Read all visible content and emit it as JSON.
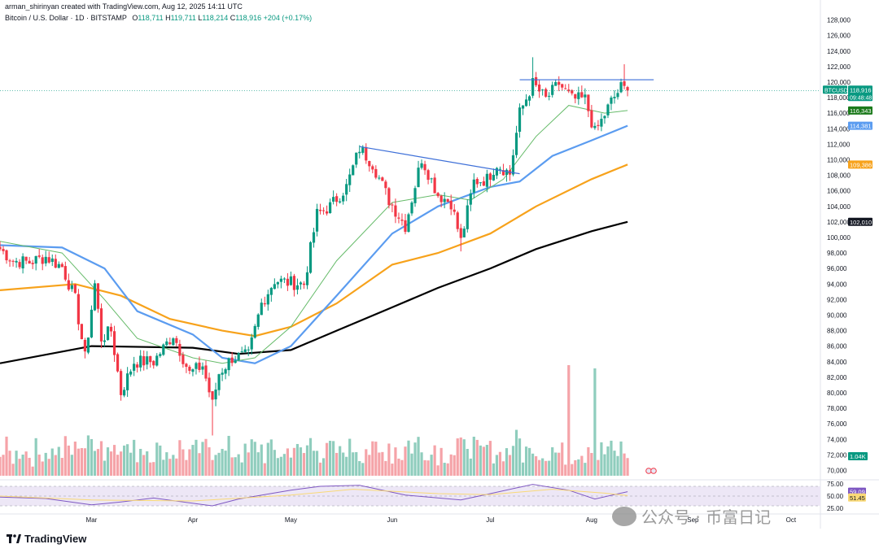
{
  "header": {
    "author_line": "arman_shirinyan created with TradingView.com, Aug 12, 2025 14:11 UTC",
    "symbol_line": "Bitcoin / U.S. Dollar · 1D · BITSTAMP",
    "open_label": "O",
    "open": "118,711",
    "high_label": "H",
    "high": "119,711",
    "low_label": "L",
    "low": "118,214",
    "close_label": "C",
    "close": "118,916",
    "change": "+204 (+0.17%)"
  },
  "colors": {
    "up": "#089981",
    "down": "#f23645",
    "up_vol": "#8fcdbd",
    "down_vol": "#f5a3a8",
    "ma_fast": "#66bb6a",
    "ma_blue": "#5b9cf0",
    "ma_orange": "#f7a21b",
    "ma_black": "#000000",
    "trend": "#3d6fd8",
    "rsi": "#7e57c2",
    "rsi_ma": "#f9d976",
    "rsi_band": "#ede7f6"
  },
  "chart_data": {
    "type": "candlestick",
    "symbol": "BTCUSD",
    "ylim": [
      69000,
      129000
    ],
    "y_ticks": [
      70000,
      72000,
      74000,
      76000,
      78000,
      80000,
      82000,
      84000,
      86000,
      88000,
      90000,
      92000,
      94000,
      96000,
      98000,
      100000,
      102000,
      104000,
      106000,
      108000,
      110000,
      112000,
      114000,
      116000,
      118000,
      120000,
      122000,
      124000,
      126000,
      128000
    ],
    "y_tick_labels": [
      "70,000",
      "72,000",
      "74,000",
      "76,000",
      "78,000",
      "80,000",
      "82,000",
      "84,000",
      "86,000",
      "88,000",
      "90,000",
      "92,000",
      "94,000",
      "96,000",
      "98,000",
      "100,000",
      "102,000",
      "104,000",
      "106,000",
      "108,000",
      "110,000",
      "112,000",
      "114,000",
      "116,000",
      "118,000",
      "120,000",
      "122,000",
      "124,000",
      "126,000",
      "128,000"
    ],
    "x_start": "2025-02-01",
    "x_end": "2025-10-10",
    "month_ticks": [
      {
        "date": "2025-03-01",
        "label": "Mar"
      },
      {
        "date": "2025-04-01",
        "label": "Apr"
      },
      {
        "date": "2025-05-01",
        "label": "May"
      },
      {
        "date": "2025-06-01",
        "label": "Jun"
      },
      {
        "date": "2025-07-01",
        "label": "Jul"
      },
      {
        "date": "2025-08-01",
        "label": "Aug"
      },
      {
        "date": "2025-09-01",
        "label": "Sep"
      },
      {
        "date": "2025-10-01",
        "label": "Oct"
      }
    ],
    "price_path": [
      [
        "2025-02-01",
        98500
      ],
      [
        "2025-02-05",
        97000
      ],
      [
        "2025-02-10",
        96800
      ],
      [
        "2025-02-15",
        97500
      ],
      [
        "2025-02-20",
        96200
      ],
      [
        "2025-02-24",
        92000
      ],
      [
        "2025-02-27",
        84500
      ],
      [
        "2025-03-02",
        94000
      ],
      [
        "2025-03-04",
        87000
      ],
      [
        "2025-03-07",
        88000
      ],
      [
        "2025-03-10",
        80000
      ],
      [
        "2025-03-14",
        84000
      ],
      [
        "2025-03-20",
        84000
      ],
      [
        "2025-03-26",
        87500
      ],
      [
        "2025-03-31",
        82500
      ],
      [
        "2025-04-04",
        83500
      ],
      [
        "2025-04-07",
        78500
      ],
      [
        "2025-04-09",
        82500
      ],
      [
        "2025-04-13",
        84500
      ],
      [
        "2025-04-18",
        84800
      ],
      [
        "2025-04-22",
        91500
      ],
      [
        "2025-04-26",
        94500
      ],
      [
        "2025-04-30",
        94200
      ],
      [
        "2025-05-05",
        94000
      ],
      [
        "2025-05-09",
        103000
      ],
      [
        "2025-05-13",
        104000
      ],
      [
        "2025-05-18",
        106500
      ],
      [
        "2025-05-22",
        111500
      ],
      [
        "2025-05-26",
        109500
      ],
      [
        "2025-05-31",
        104800
      ],
      [
        "2025-06-05",
        101500
      ],
      [
        "2025-06-10",
        110200
      ],
      [
        "2025-06-15",
        105500
      ],
      [
        "2025-06-19",
        104500
      ],
      [
        "2025-06-22",
        99500
      ],
      [
        "2025-06-26",
        107200
      ],
      [
        "2025-06-30",
        107500
      ],
      [
        "2025-07-03",
        109500
      ],
      [
        "2025-07-07",
        108200
      ],
      [
        "2025-07-10",
        116000
      ],
      [
        "2025-07-14",
        119800
      ],
      [
        "2025-07-18",
        117800
      ],
      [
        "2025-07-22",
        119800
      ],
      [
        "2025-07-26",
        117800
      ],
      [
        "2025-07-30",
        117800
      ],
      [
        "2025-08-02",
        113500
      ],
      [
        "2025-08-04",
        115000
      ],
      [
        "2025-08-07",
        117500
      ],
      [
        "2025-08-10",
        119300
      ],
      [
        "2025-08-12",
        118916
      ]
    ],
    "wick_extremes": [
      {
        "date": "2025-07-14",
        "high": 123200
      },
      {
        "date": "2025-08-11",
        "high": 122300
      },
      {
        "date": "2025-04-07",
        "low": 74500
      },
      {
        "date": "2025-06-22",
        "low": 98200
      }
    ],
    "volume_spikes": [
      {
        "date": "2025-07-25",
        "scale": 3.4
      },
      {
        "date": "2025-08-02",
        "scale": 3.3
      }
    ],
    "moving_averages": [
      {
        "color_key": "ma_black",
        "points": [
          [
            "2025-02-01",
            83800
          ],
          [
            "2025-03-01",
            86000
          ],
          [
            "2025-04-01",
            85800
          ],
          [
            "2025-04-15",
            85000
          ],
          [
            "2025-05-01",
            85500
          ],
          [
            "2025-05-15",
            88000
          ],
          [
            "2025-06-01",
            91000
          ],
          [
            "2025-06-15",
            93500
          ],
          [
            "2025-07-01",
            96000
          ],
          [
            "2025-07-15",
            98500
          ],
          [
            "2025-08-01",
            100800
          ],
          [
            "2025-08-12",
            102010
          ]
        ]
      },
      {
        "color_key": "ma_orange",
        "points": [
          [
            "2025-02-01",
            93200
          ],
          [
            "2025-02-24",
            94000
          ],
          [
            "2025-03-10",
            92500
          ],
          [
            "2025-03-25",
            89500
          ],
          [
            "2025-04-10",
            88000
          ],
          [
            "2025-04-20",
            87300
          ],
          [
            "2025-05-01",
            88500
          ],
          [
            "2025-05-15",
            91500
          ],
          [
            "2025-06-01",
            96500
          ],
          [
            "2025-06-15",
            98000
          ],
          [
            "2025-07-01",
            100500
          ],
          [
            "2025-07-15",
            104000
          ],
          [
            "2025-08-01",
            107500
          ],
          [
            "2025-08-12",
            109386
          ]
        ]
      },
      {
        "color_key": "ma_blue",
        "points": [
          [
            "2025-02-01",
            99000
          ],
          [
            "2025-02-20",
            98700
          ],
          [
            "2025-03-05",
            96000
          ],
          [
            "2025-03-15",
            90500
          ],
          [
            "2025-04-01",
            87500
          ],
          [
            "2025-04-10",
            84500
          ],
          [
            "2025-04-20",
            83800
          ],
          [
            "2025-05-01",
            86000
          ],
          [
            "2025-05-15",
            92500
          ],
          [
            "2025-06-01",
            100500
          ],
          [
            "2025-06-15",
            104000
          ],
          [
            "2025-07-01",
            106500
          ],
          [
            "2025-07-10",
            107200
          ],
          [
            "2025-07-20",
            110500
          ],
          [
            "2025-08-01",
            112500
          ],
          [
            "2025-08-12",
            114381
          ]
        ]
      },
      {
        "color_key": "ma_fast",
        "points": [
          [
            "2025-02-01",
            99500
          ],
          [
            "2025-02-20",
            98000
          ],
          [
            "2025-03-05",
            92000
          ],
          [
            "2025-03-15",
            87000
          ],
          [
            "2025-04-01",
            84500
          ],
          [
            "2025-04-10",
            83800
          ],
          [
            "2025-04-20",
            84500
          ],
          [
            "2025-05-01",
            88500
          ],
          [
            "2025-05-15",
            97000
          ],
          [
            "2025-06-01",
            104500
          ],
          [
            "2025-06-15",
            105500
          ],
          [
            "2025-06-25",
            104800
          ],
          [
            "2025-07-05",
            107500
          ],
          [
            "2025-07-15",
            113000
          ],
          [
            "2025-07-25",
            117000
          ],
          [
            "2025-08-05",
            116000
          ],
          [
            "2025-08-12",
            116343
          ]
        ]
      }
    ],
    "trend_lines": [
      {
        "from": [
          "2025-05-22",
          111700
        ],
        "to": [
          "2025-07-10",
          108200
        ]
      },
      {
        "from": [
          "2025-07-10",
          120300
        ],
        "to": [
          "2025-08-20",
          120300
        ]
      }
    ],
    "price_labels": [
      {
        "name": "BTCUSD",
        "value": 118916,
        "text": "118,916",
        "sub": "09:48:48",
        "color_key": "up"
      },
      {
        "value": 116343,
        "text": "116,343",
        "color": "#1b7a1b"
      },
      {
        "value": 114381,
        "text": "114,381",
        "color": "#5b9cf0"
      },
      {
        "value": 109386,
        "text": "109,386",
        "color": "#f7a21b"
      },
      {
        "value": 102010,
        "text": "102,010",
        "color": "#131722"
      }
    ],
    "volume_label": {
      "text": "1.04K",
      "color_key": "up"
    },
    "rsi": {
      "ylim": [
        20,
        80
      ],
      "band": [
        30,
        70
      ],
      "ticks": [
        "75.00",
        "50.00",
        "25.00"
      ],
      "value": "59.09",
      "ma_value": "51.45",
      "points": [
        [
          "2025-02-01",
          48
        ],
        [
          "2025-02-15",
          45
        ],
        [
          "2025-03-01",
          32
        ],
        [
          "2025-03-10",
          38
        ],
        [
          "2025-03-20",
          46
        ],
        [
          "2025-04-07",
          30
        ],
        [
          "2025-04-15",
          44
        ],
        [
          "2025-05-01",
          62
        ],
        [
          "2025-05-10",
          70
        ],
        [
          "2025-05-22",
          72
        ],
        [
          "2025-06-05",
          52
        ],
        [
          "2025-06-22",
          42
        ],
        [
          "2025-07-01",
          55
        ],
        [
          "2025-07-14",
          74
        ],
        [
          "2025-07-25",
          62
        ],
        [
          "2025-08-02",
          44
        ],
        [
          "2025-08-12",
          59
        ]
      ],
      "ma_points": [
        [
          "2025-02-01",
          50
        ],
        [
          "2025-03-01",
          42
        ],
        [
          "2025-04-01",
          40
        ],
        [
          "2025-05-01",
          52
        ],
        [
          "2025-05-20",
          64
        ],
        [
          "2025-06-15",
          55
        ],
        [
          "2025-07-01",
          53
        ],
        [
          "2025-07-20",
          64
        ],
        [
          "2025-08-05",
          56
        ],
        [
          "2025-08-12",
          51
        ]
      ]
    }
  },
  "footer": {
    "brand": "TradingView"
  },
  "watermark": {
    "text": "公众号 · 币富日记"
  }
}
